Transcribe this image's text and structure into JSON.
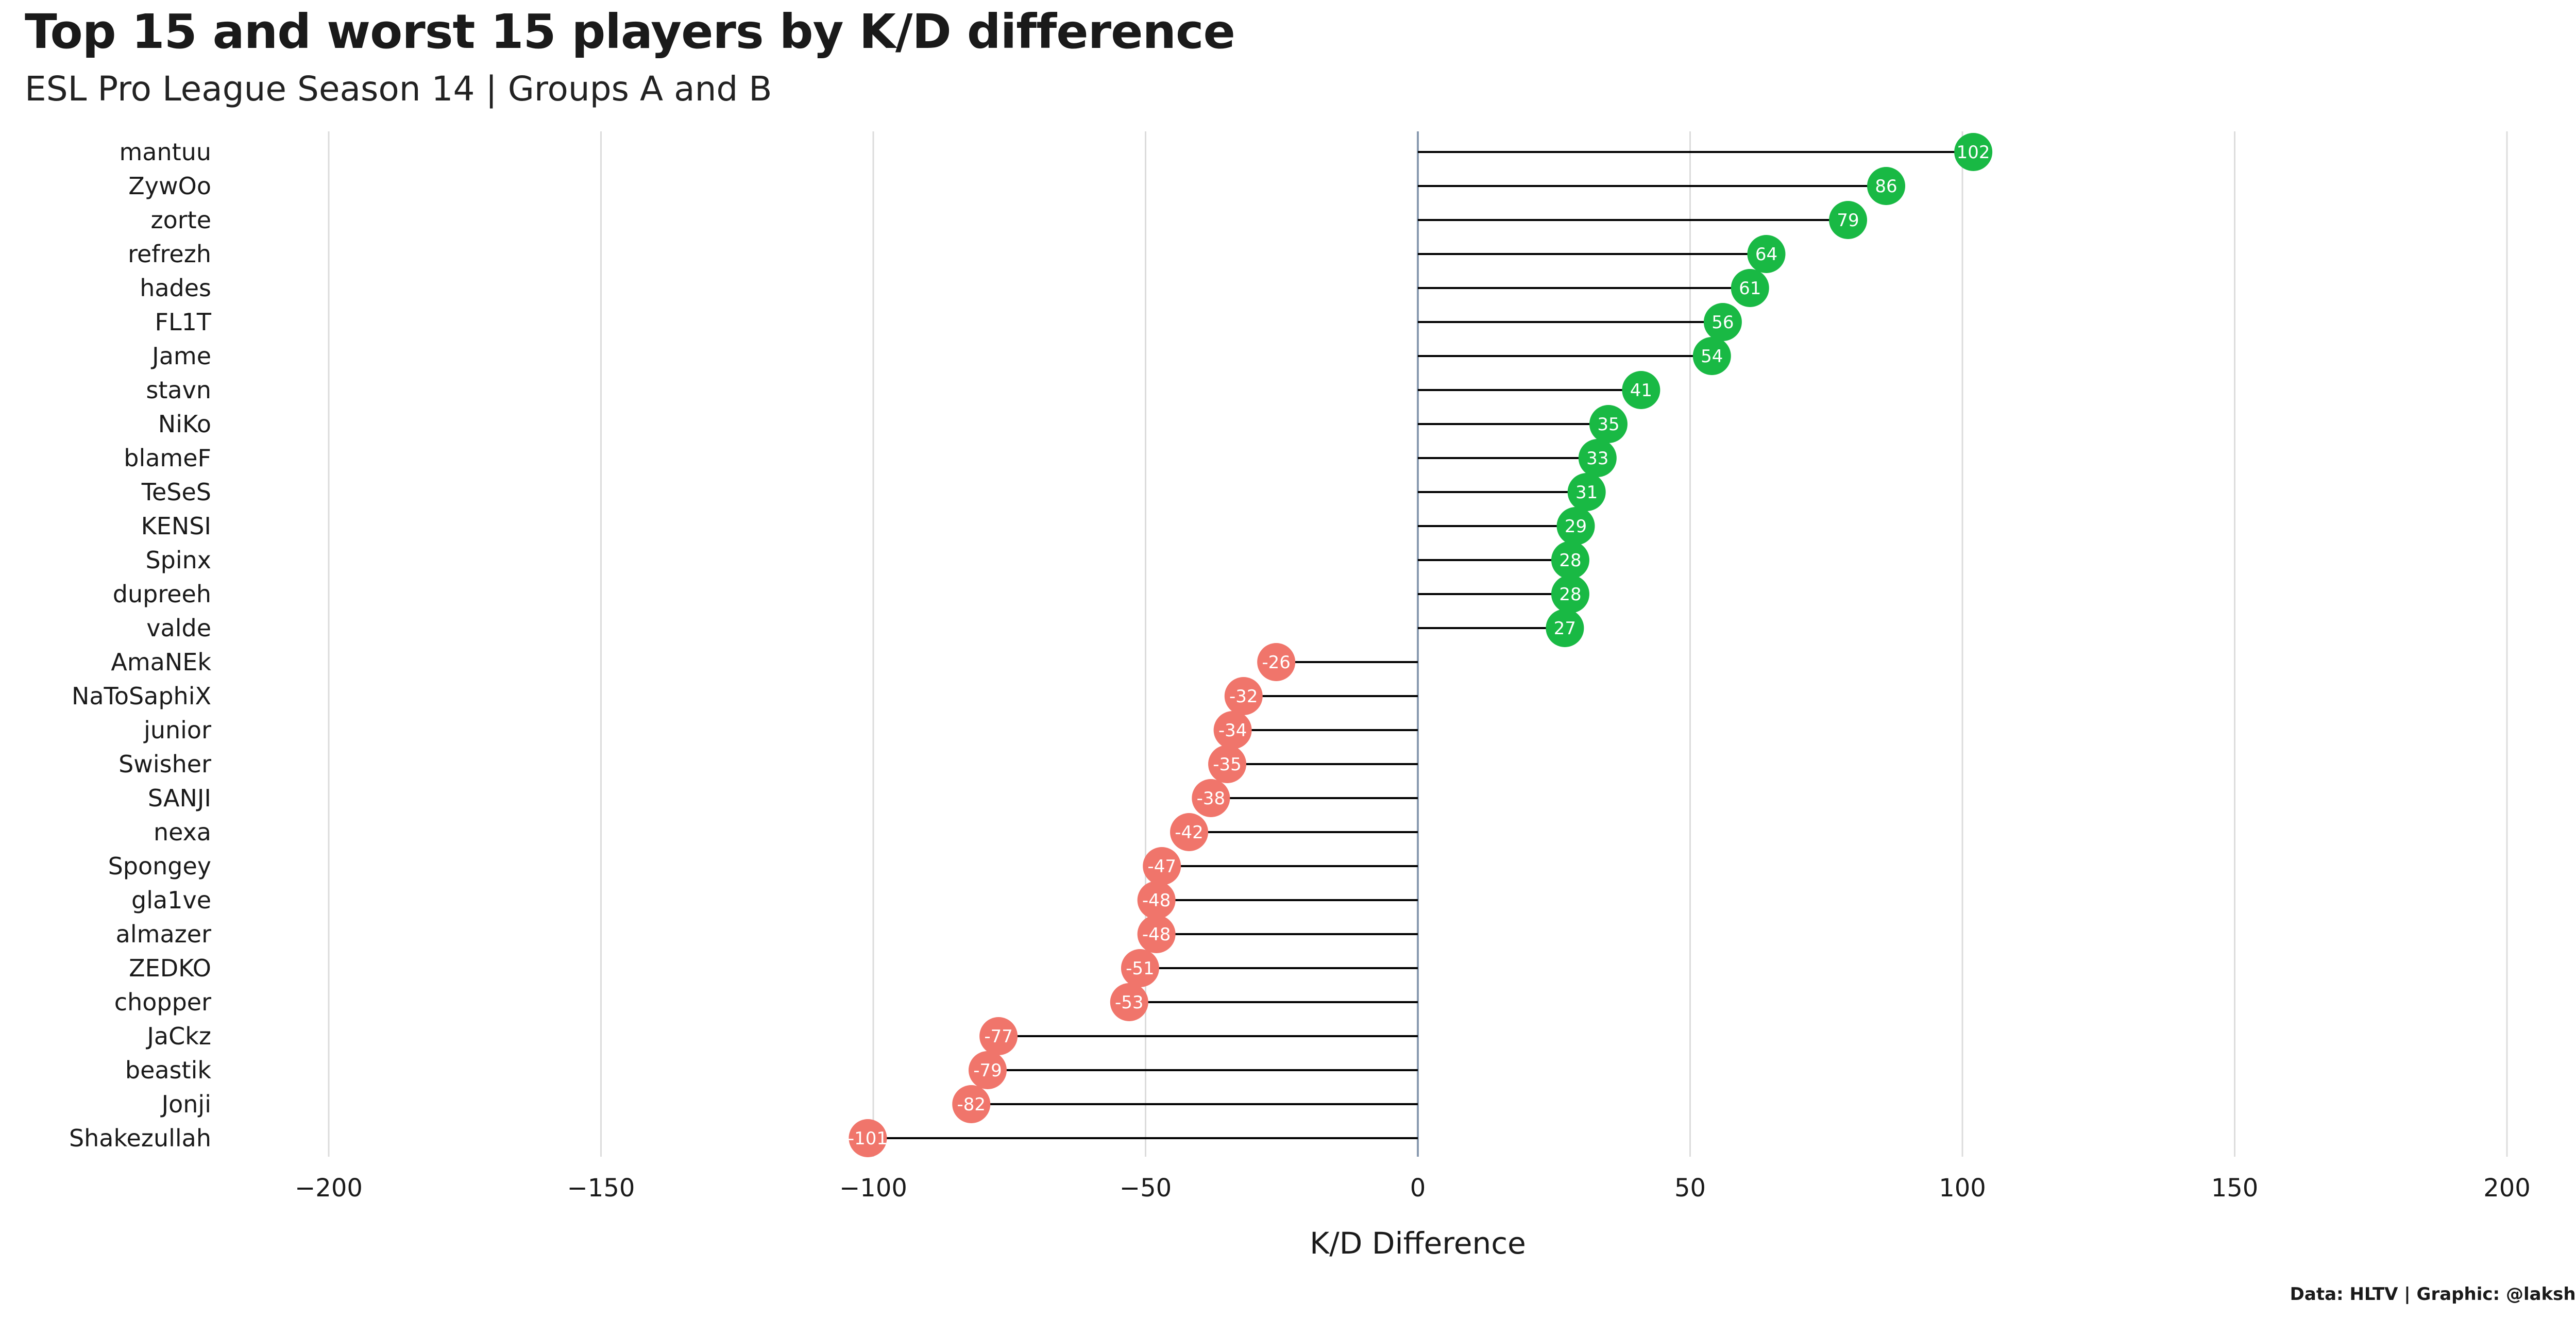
{
  "header": {
    "title": "Top 15 and worst 15 players by K/D difference",
    "subtitle": "ESL Pro League Season 14 | Groups A and B"
  },
  "caption": "Data: HLTV | Graphic: @lakshyaag",
  "chart_data": {
    "type": "lollipop",
    "orientation": "horizontal",
    "title": "Top 15 and worst 15 players by K/D difference",
    "subtitle": "ESL Pro League Season 14 | Groups A and B",
    "xlabel": "K/D Difference",
    "ylabel": "",
    "xlim": [
      -200,
      200
    ],
    "xticks": [
      -200,
      -150,
      -100,
      -50,
      0,
      50,
      100,
      150,
      200
    ],
    "xtick_labels": [
      "−200",
      "−150",
      "−100",
      "−50",
      "0",
      "50",
      "100",
      "150",
      "200"
    ],
    "grid": "vertical major gridlines",
    "colors": {
      "positive": "#19b944",
      "negative": "#f0756b",
      "stem": "#000000",
      "grid": "#dcdcdc",
      "zero_line": "#8a9bb0"
    },
    "players": [
      "mantuu",
      "ZywOo",
      "zorte",
      "refrezh",
      "hades",
      "FL1T",
      "Jame",
      "stavn",
      "NiKo",
      "blameF",
      "TeSeS",
      "KENSI",
      "Spinx",
      "dupreeh",
      "valde",
      "AmaNEk",
      "NaToSaphiX",
      "junior",
      "Swisher",
      "SANJI",
      "nexa",
      "Spongey",
      "gla1ve",
      "almazer",
      "ZEDKO",
      "chopper",
      "JaCkz",
      "beastik",
      "Jonji",
      "Shakezullah"
    ],
    "values": [
      102,
      86,
      79,
      64,
      61,
      56,
      54,
      41,
      35,
      33,
      31,
      29,
      28,
      28,
      27,
      -26,
      -32,
      -34,
      -35,
      -38,
      -42,
      -47,
      -48,
      -48,
      -51,
      -53,
      -77,
      -79,
      -82,
      -101
    ]
  }
}
